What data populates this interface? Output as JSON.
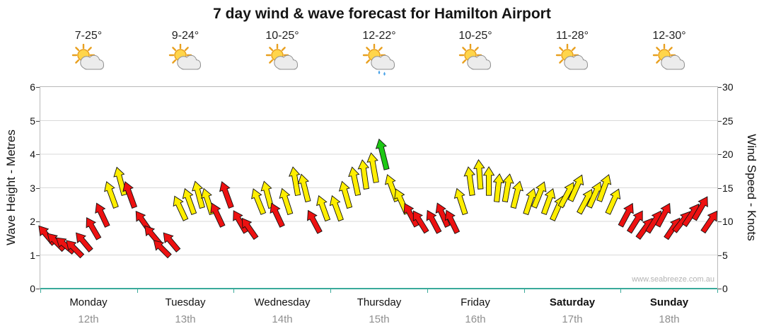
{
  "title": "7 day wind & wave forecast for Hamilton Airport",
  "watermark": "www.seabreeze.com.au",
  "axes": {
    "left_label": "Wave Height - Metres",
    "right_label": "Wind Speed - Knots",
    "left_ticks": [
      "0",
      "1",
      "2",
      "3",
      "4",
      "5",
      "6"
    ],
    "right_ticks": [
      "0",
      "5",
      "10",
      "15",
      "20",
      "25",
      "30"
    ]
  },
  "days": [
    {
      "name": "Monday",
      "date": "12th",
      "temp": "7-25°",
      "icon": "sun-cloud"
    },
    {
      "name": "Tuesday",
      "date": "13th",
      "temp": "9-24°",
      "icon": "sun-cloud"
    },
    {
      "name": "Wednesday",
      "date": "14th",
      "temp": "10-25°",
      "icon": "sun-cloud"
    },
    {
      "name": "Thursday",
      "date": "15th",
      "temp": "12-22°",
      "icon": "sun-cloud-rain"
    },
    {
      "name": "Friday",
      "date": "16th",
      "temp": "10-25°",
      "icon": "sun-cloud"
    },
    {
      "name": "Saturday",
      "date": "17th",
      "temp": "11-28°",
      "icon": "sun-cloud"
    },
    {
      "name": "Sunday",
      "date": "18th",
      "temp": "12-30°",
      "icon": "sun-cloud"
    }
  ],
  "chart_data": {
    "type": "scatter",
    "subtype": "wind-arrows",
    "title": "7 day wind & wave forecast for Hamilton Airport",
    "ylabel_left": "Wave Height - Metres",
    "ylabel_right": "Wind Speed - Knots",
    "y_left_range": [
      0,
      6
    ],
    "y_right_range": [
      0,
      30
    ],
    "x_categories": [
      "Monday 12th",
      "Tuesday 13th",
      "Wednesday 14th",
      "Thursday 15th",
      "Friday 16th",
      "Saturday 17th",
      "Sunday 18th"
    ],
    "grid": true,
    "colors": {
      "red": "#ed1111",
      "yellow": "#ffee00",
      "green": "#1dc814"
    },
    "points_format": [
      "day_index",
      "hour",
      "knots",
      "color",
      "arrow_rotation_deg"
    ],
    "points": [
      [
        0,
        1.5,
        8,
        "red",
        -40
      ],
      [
        0,
        3.8,
        7,
        "red",
        -45
      ],
      [
        0,
        6.1,
        6.5,
        "red",
        -50
      ],
      [
        0,
        8.4,
        6,
        "red",
        -45
      ],
      [
        0,
        10.7,
        7,
        "red",
        -40
      ],
      [
        0,
        13,
        9,
        "red",
        -30
      ],
      [
        0,
        15.3,
        11,
        "red",
        -25
      ],
      [
        0,
        17.6,
        14,
        "yellow",
        -20
      ],
      [
        0,
        19.9,
        16,
        "yellow",
        -15
      ],
      [
        0,
        22.2,
        14,
        "red",
        -20
      ],
      [
        1,
        1.5,
        10,
        "red",
        -35
      ],
      [
        1,
        3.8,
        8,
        "red",
        -40
      ],
      [
        1,
        6.1,
        6,
        "red",
        -45
      ],
      [
        1,
        8.4,
        7,
        "red",
        -40
      ],
      [
        1,
        10.7,
        12,
        "yellow",
        -25
      ],
      [
        1,
        13,
        13,
        "yellow",
        -20
      ],
      [
        1,
        15.3,
        14,
        "yellow",
        -15
      ],
      [
        1,
        17.6,
        13,
        "yellow",
        -18
      ],
      [
        1,
        19.9,
        11,
        "red",
        -25
      ],
      [
        1,
        22.2,
        14,
        "red",
        -20
      ],
      [
        2,
        1.5,
        10,
        "red",
        -30
      ],
      [
        2,
        3.8,
        9,
        "red",
        -35
      ],
      [
        2,
        6.1,
        13,
        "yellow",
        -22
      ],
      [
        2,
        8.4,
        14,
        "yellow",
        -15
      ],
      [
        2,
        10.7,
        11,
        "red",
        -25
      ],
      [
        2,
        13,
        13,
        "yellow",
        -18
      ],
      [
        2,
        15.3,
        16,
        "yellow",
        -10
      ],
      [
        2,
        17.6,
        15,
        "yellow",
        -14
      ],
      [
        2,
        19.9,
        10,
        "red",
        -28
      ],
      [
        2,
        22.2,
        12,
        "yellow",
        -20
      ],
      [
        3,
        1.5,
        12,
        "yellow",
        -20
      ],
      [
        3,
        3.8,
        14,
        "yellow",
        -16
      ],
      [
        3,
        6.1,
        16,
        "yellow",
        -12
      ],
      [
        3,
        8.4,
        17,
        "yellow",
        -8
      ],
      [
        3,
        10.7,
        18,
        "yellow",
        -10
      ],
      [
        3,
        13,
        20,
        "green",
        -14
      ],
      [
        3,
        15.3,
        15,
        "yellow",
        -20
      ],
      [
        3,
        17.6,
        13,
        "yellow",
        -24
      ],
      [
        3,
        19.9,
        11,
        "red",
        -28
      ],
      [
        3,
        22.2,
        10,
        "red",
        -32
      ],
      [
        4,
        1.5,
        10,
        "red",
        -28
      ],
      [
        4,
        3.8,
        11,
        "red",
        -24
      ],
      [
        4,
        6.1,
        10,
        "red",
        -26
      ],
      [
        4,
        8.4,
        13,
        "yellow",
        -18
      ],
      [
        4,
        10.7,
        16,
        "yellow",
        -8
      ],
      [
        4,
        13,
        17,
        "yellow",
        -4
      ],
      [
        4,
        15.3,
        16,
        "yellow",
        0
      ],
      [
        4,
        17.6,
        15,
        "yellow",
        6
      ],
      [
        4,
        19.9,
        15,
        "yellow",
        10
      ],
      [
        4,
        22.2,
        14,
        "yellow",
        14
      ],
      [
        5,
        1.5,
        13,
        "yellow",
        18
      ],
      [
        5,
        3.8,
        14,
        "yellow",
        22
      ],
      [
        5,
        6.1,
        13,
        "yellow",
        20
      ],
      [
        5,
        8.4,
        12,
        "yellow",
        24
      ],
      [
        5,
        10.7,
        14,
        "yellow",
        28
      ],
      [
        5,
        13,
        15,
        "yellow",
        24
      ],
      [
        5,
        15.3,
        13,
        "yellow",
        28
      ],
      [
        5,
        17.6,
        14,
        "yellow",
        24
      ],
      [
        5,
        19.9,
        15,
        "yellow",
        20
      ],
      [
        5,
        22.2,
        13,
        "yellow",
        24
      ],
      [
        6,
        1.5,
        11,
        "red",
        28
      ],
      [
        6,
        3.8,
        10,
        "red",
        32
      ],
      [
        6,
        6.1,
        9,
        "red",
        36
      ],
      [
        6,
        8.4,
        10,
        "red",
        32
      ],
      [
        6,
        10.7,
        11,
        "red",
        28
      ],
      [
        6,
        13,
        9,
        "red",
        34
      ],
      [
        6,
        15.3,
        10,
        "red",
        38
      ],
      [
        6,
        17.6,
        11,
        "red",
        34
      ],
      [
        6,
        19.9,
        12,
        "red",
        30
      ],
      [
        6,
        22.2,
        10,
        "red",
        34
      ]
    ]
  }
}
